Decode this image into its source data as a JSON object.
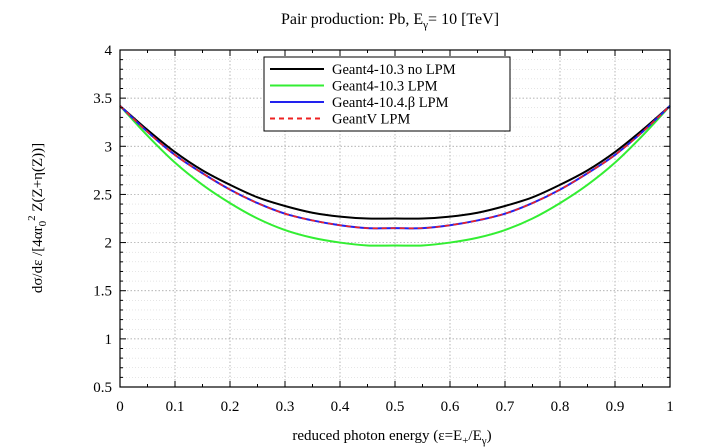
{
  "chart_data": {
    "type": "line",
    "title": "Pair production: Pb, Eγ= 10 [TeV]",
    "title_parts": {
      "main": "Pair production: Pb, E",
      "sub": "γ",
      "rest": "= 10 [TeV]"
    },
    "xlabel": "reduced photon energy (ε=E+/Eγ)",
    "xlabel_parts": {
      "a": "reduced photon energy (ε=E",
      "sub1": "+",
      "b": "/E",
      "sub2": "γ",
      "c": ")"
    },
    "ylabel": "dσ/dε /[4αr0^2 Z(Z+η(Z))]",
    "ylabel_parts": {
      "a": "dσ/dε /[4αr",
      "sub": "0",
      "sup": "2",
      "b": " Z(Z+η(Z))]"
    },
    "xlim": [
      0,
      1
    ],
    "ylim": [
      0.5,
      4
    ],
    "xticks": [
      0,
      0.1,
      0.2,
      0.3,
      0.4,
      0.5,
      0.6,
      0.7,
      0.8,
      0.9,
      1
    ],
    "xtick_labels": [
      "0",
      "0.1",
      "0.2",
      "0.3",
      "0.4",
      "0.5",
      "0.6",
      "0.7",
      "0.8",
      "0.9",
      "1"
    ],
    "yticks": [
      0.5,
      1,
      1.5,
      2,
      2.5,
      3,
      3.5,
      4
    ],
    "ytick_labels": [
      "0.5",
      "1",
      "1.5",
      "2",
      "2.5",
      "3",
      "3.5",
      "4"
    ],
    "grid": true,
    "legend_position": "top-center",
    "x": [
      0,
      0.05,
      0.1,
      0.15,
      0.2,
      0.25,
      0.3,
      0.35,
      0.4,
      0.45,
      0.5,
      0.55,
      0.6,
      0.65,
      0.7,
      0.75,
      0.8,
      0.85,
      0.9,
      0.95,
      1
    ],
    "series": [
      {
        "name": "Geant4-10.3 no LPM",
        "color": "#000000",
        "dash": "solid",
        "values": [
          3.42,
          3.17,
          2.94,
          2.75,
          2.6,
          2.47,
          2.38,
          2.31,
          2.27,
          2.25,
          2.25,
          2.25,
          2.27,
          2.31,
          2.38,
          2.47,
          2.6,
          2.75,
          2.94,
          3.17,
          3.42
        ]
      },
      {
        "name": "Geant4-10.3 LPM",
        "color": "#33ee33",
        "dash": "solid",
        "values": [
          3.42,
          3.11,
          2.83,
          2.6,
          2.41,
          2.25,
          2.13,
          2.05,
          2.0,
          1.97,
          1.97,
          1.97,
          2.0,
          2.05,
          2.13,
          2.25,
          2.41,
          2.6,
          2.83,
          3.11,
          3.42
        ]
      },
      {
        "name": "Geant4-10.4.β LPM",
        "color": "#2222ee",
        "dash": "solid",
        "values": [
          3.42,
          3.15,
          2.91,
          2.72,
          2.55,
          2.41,
          2.3,
          2.23,
          2.18,
          2.15,
          2.15,
          2.15,
          2.18,
          2.23,
          2.3,
          2.41,
          2.55,
          2.72,
          2.91,
          3.15,
          3.42
        ]
      },
      {
        "name": "GeantV LPM",
        "color": "#ee2222",
        "dash": "dashed",
        "values": [
          3.42,
          3.15,
          2.91,
          2.72,
          2.55,
          2.41,
          2.3,
          2.23,
          2.18,
          2.15,
          2.15,
          2.15,
          2.18,
          2.23,
          2.3,
          2.41,
          2.55,
          2.72,
          2.91,
          3.15,
          3.42
        ]
      }
    ]
  }
}
